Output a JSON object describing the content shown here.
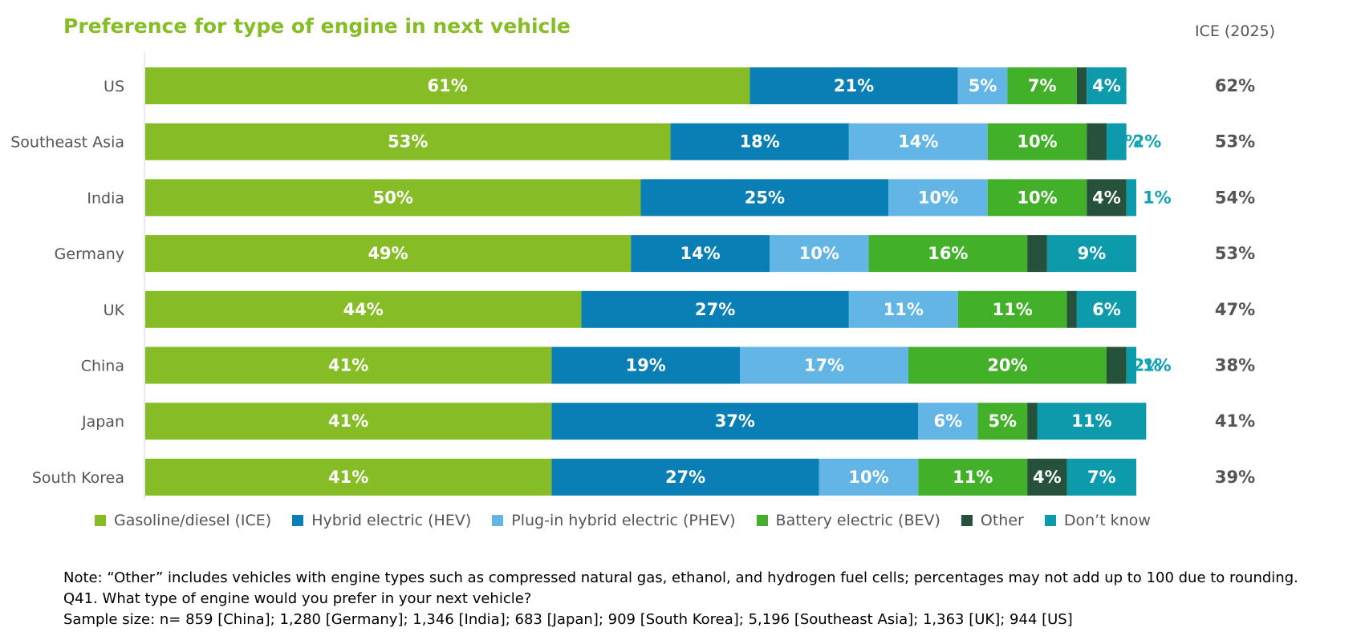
{
  "chart_data": {
    "type": "bar",
    "orientation": "horizontal",
    "stacked": true,
    "title": "Preference for type of engine in next vehicle",
    "categories": [
      "US",
      "Southeast Asia",
      "India",
      "Germany",
      "UK",
      "China",
      "Japan",
      "South Korea"
    ],
    "series": [
      {
        "name": "Gasoline/diesel (ICE)",
        "color": "#86BC25",
        "values": [
          61,
          53,
          50,
          49,
          44,
          41,
          41,
          41
        ]
      },
      {
        "name": "Hybrid electric (HEV)",
        "color": "#0A7FB5",
        "values": [
          21,
          18,
          25,
          14,
          27,
          19,
          37,
          27
        ]
      },
      {
        "name": "Plug-in hybrid electric (PHEV)",
        "color": "#62B5E5",
        "values": [
          5,
          14,
          10,
          10,
          11,
          17,
          6,
          10
        ]
      },
      {
        "name": "Battery electric (BEV)",
        "color": "#43B02A",
        "values": [
          7,
          10,
          10,
          16,
          11,
          20,
          5,
          11
        ]
      },
      {
        "name": "Other",
        "color": "#26523B",
        "values": [
          1,
          2,
          4,
          2,
          1,
          2,
          1,
          4
        ]
      },
      {
        "name": "Don’t know",
        "color": "#0D9AAB",
        "values": [
          4,
          2,
          1,
          9,
          6,
          1,
          11,
          7
        ]
      }
    ],
    "side_column": {
      "header": "ICE (2025)",
      "values": [
        "62%",
        "53%",
        "54%",
        "53%",
        "47%",
        "38%",
        "41%",
        "39%"
      ]
    },
    "xlim": [
      0,
      100
    ],
    "legend_position": "bottom",
    "grid": false
  },
  "notes": {
    "note": "Note: “Other” includes vehicles with engine types such as compressed natural gas, ethanol, and hydrogen fuel cells; percentages may not add up to 100 due to rounding.",
    "question": "Q41. What type of engine would you prefer in your next vehicle?",
    "sample": "Sample size: n= 859 [China]; 1,280 [Germany]; 1,346 [India]; 683 [Japan]; 909 [South Korea]; 5,196 [Southeast Asia]; 1,363 [UK]; 944 [US]"
  }
}
